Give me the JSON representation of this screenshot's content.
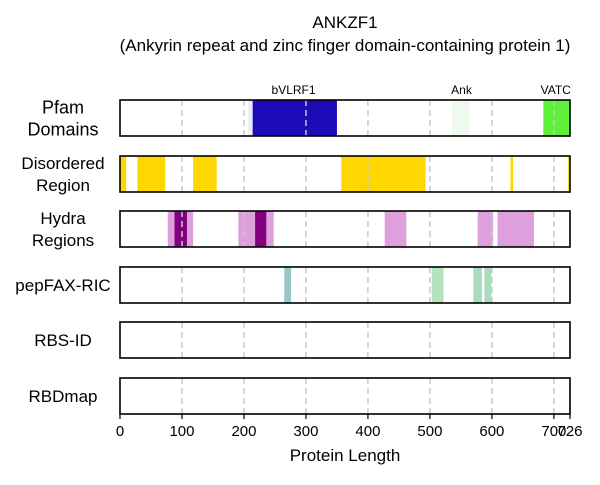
{
  "chart_data": {
    "type": "domain-track",
    "title": "ANKZF1",
    "subtitle": "(Ankyrin repeat and zinc finger domain-containing protein 1)",
    "xlabel": "Protein Length",
    "xlim": [
      0,
      726
    ],
    "xticks": [
      0,
      100,
      200,
      300,
      400,
      500,
      600,
      700,
      726
    ],
    "grid_x": [
      100,
      200,
      300,
      400,
      500,
      600,
      700
    ],
    "tracks": [
      {
        "label": "Pfam Domains",
        "segments": [
          {
            "start": 207,
            "end": 214,
            "color": "#e9ecf6"
          },
          {
            "start": 214,
            "end": 350,
            "color": "#1e0bb8"
          },
          {
            "start": 536,
            "end": 565,
            "color": "#eefaee"
          },
          {
            "start": 683,
            "end": 726,
            "color": "#5ff03a"
          }
        ],
        "annotations": [
          {
            "text": "bVLRF1",
            "at": 280
          },
          {
            "text": "Ank",
            "at": 551
          },
          {
            "text": "VATC",
            "at": 703
          }
        ]
      },
      {
        "label": "Disordered Region",
        "segments": [
          {
            "start": 0,
            "end": 10,
            "color": "#ffd700"
          },
          {
            "start": 28,
            "end": 73,
            "color": "#ffd700"
          },
          {
            "start": 118,
            "end": 156,
            "color": "#ffd700"
          },
          {
            "start": 357,
            "end": 493,
            "color": "#ffd700"
          },
          {
            "start": 630,
            "end": 634,
            "color": "#ffd700"
          },
          {
            "start": 723,
            "end": 726,
            "color": "#ffd700"
          }
        ]
      },
      {
        "label": "Hydra Regions",
        "segments": [
          {
            "start": 77,
            "end": 118,
            "color": "#dda0dd"
          },
          {
            "start": 88,
            "end": 108,
            "color": "#800080"
          },
          {
            "start": 191,
            "end": 248,
            "color": "#dda0dd"
          },
          {
            "start": 218,
            "end": 236,
            "color": "#800080"
          },
          {
            "start": 427,
            "end": 462,
            "color": "#dda0dd"
          },
          {
            "start": 577,
            "end": 602,
            "color": "#dda0dd"
          },
          {
            "start": 609,
            "end": 668,
            "color": "#dda0dd"
          }
        ]
      },
      {
        "label": "pepFAX-RIC",
        "segments": [
          {
            "start": 265,
            "end": 276,
            "color": "#96c9c6"
          },
          {
            "start": 503,
            "end": 522,
            "color": "#b3e4bb"
          },
          {
            "start": 570,
            "end": 584,
            "color": "#a8dcbc"
          },
          {
            "start": 588,
            "end": 599,
            "color": "#a8dcbc"
          }
        ]
      },
      {
        "label": "RBS-ID",
        "segments": []
      },
      {
        "label": "RBDmap",
        "segments": []
      }
    ],
    "grid": true
  }
}
